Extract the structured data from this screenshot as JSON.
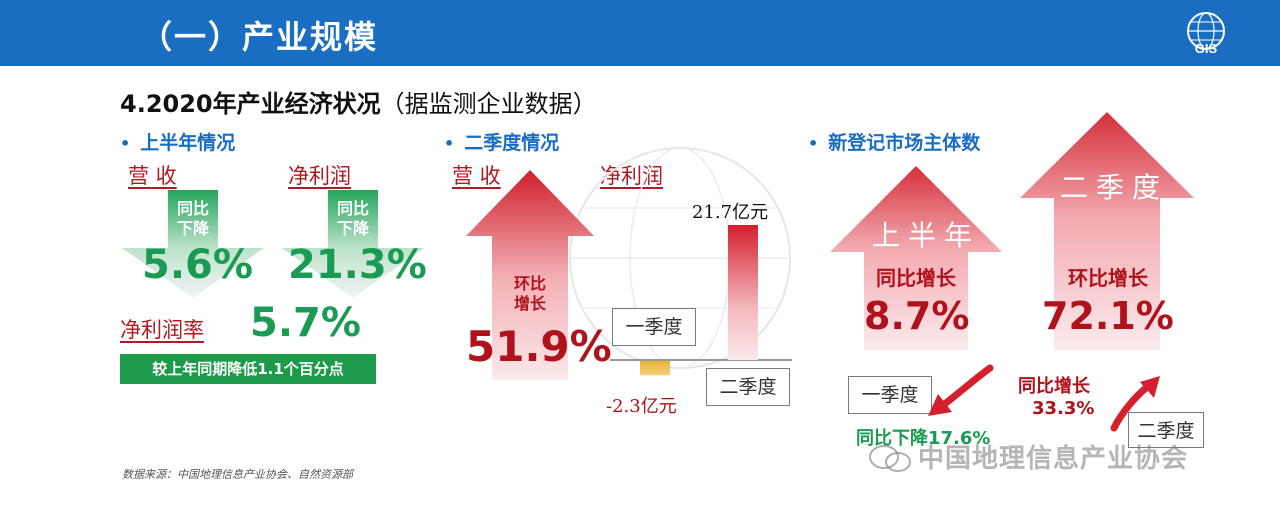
{
  "header": {
    "title": "（一）产业规模",
    "logo_text": "GIS"
  },
  "subtitle": {
    "main": "4.2020年产业经济状况",
    "note": "（据监测企业数据）"
  },
  "h1": {
    "bullet": "上半年情况",
    "revenue_label": "营 收",
    "revenue_arrow_text": [
      "同比",
      "下降"
    ],
    "revenue_value": "5.6%",
    "profit_label": "净利润",
    "profit_arrow_text": [
      "同比",
      "下降"
    ],
    "profit_value": "21.3%",
    "margin_label": "净利润率",
    "margin_value": "5.7%",
    "margin_note": "较上年同期降低1.1个百分点"
  },
  "q2": {
    "bullet": "二季度情况",
    "revenue_label": "营 收",
    "revenue_arrow_text": [
      "环比",
      "增长"
    ],
    "revenue_value": "51.9%",
    "profit_label": "净利润",
    "q2_profit_value": "21.7亿元",
    "q1_profit_value": "-2.3亿元",
    "q1_label": "一季度",
    "q2_label": "二季度",
    "chart_data": {
      "type": "bar",
      "categories": [
        "一季度",
        "二季度"
      ],
      "values": [
        -2.3,
        21.7
      ]
    }
  },
  "new_entities": {
    "bullet": "新登记市场主体数",
    "h1_label": "上半年",
    "h1_growth_label": "同比增长",
    "h1_value": "8.7%",
    "q2_label": "二季度",
    "q2_growth_label": "环比增长",
    "q2_value": "72.1%",
    "q1_box": "一季度",
    "q1_change": "同比下降17.6%",
    "q2_box": "二季度",
    "q2_change_label": "同比增长",
    "q2_change_value": "33.3%"
  },
  "source": "数据来源：中国地理信息产业协会、自然资源部",
  "watermark": "中国地理信息产业协会",
  "colors": {
    "header_blue": "#1a6ec2",
    "green": "#1a9b54",
    "red": "#b0121b"
  }
}
